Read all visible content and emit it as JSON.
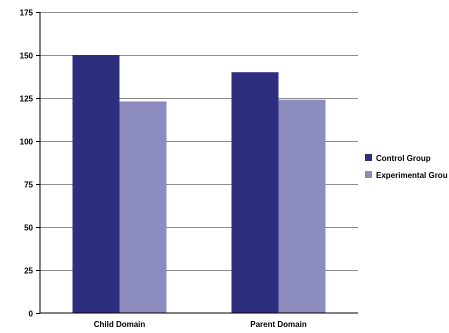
{
  "chart_data": {
    "type": "bar",
    "categories": [
      "Child Domain",
      "Parent Domain"
    ],
    "series": [
      {
        "name": "Control Group",
        "values": [
          150,
          140
        ],
        "color": "#2e2e7f"
      },
      {
        "name": "Experimental Grou",
        "values": [
          123,
          124
        ],
        "color": "#8b8bbd"
      }
    ],
    "ylim": [
      0,
      175
    ],
    "yticks": [
      0,
      25,
      50,
      75,
      100,
      125,
      150,
      175
    ],
    "ytick_labels": [
      "0",
      "25",
      "50",
      "75",
      "100",
      "125",
      "150",
      "175"
    ],
    "grid": true,
    "legend_position": "right"
  }
}
